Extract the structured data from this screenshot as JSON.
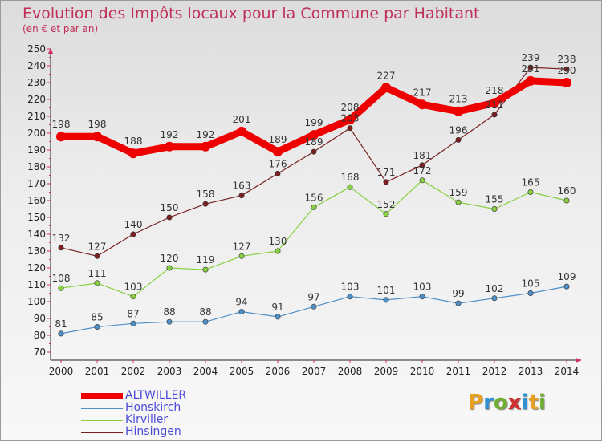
{
  "header": {
    "title": "Evolution des Impôts locaux pour la Commune par Habitant",
    "subtitle": "(en € et par an)"
  },
  "logo": {
    "letters": [
      "P",
      "r",
      "o",
      "x",
      "i",
      "t",
      "i"
    ],
    "colors": [
      "#e8a020",
      "#3090d0",
      "#70b030",
      "#d03030",
      "#3090d0",
      "#e8a020",
      "#70b030"
    ]
  },
  "chart_data": {
    "type": "line",
    "x": [
      "2000",
      "2001",
      "2002",
      "2003",
      "2004",
      "2005",
      "2006",
      "2007",
      "2008",
      "2009",
      "2010",
      "2011",
      "2012",
      "2013",
      "2014"
    ],
    "ylim": [
      70,
      250
    ],
    "yticks": [
      70,
      80,
      90,
      100,
      110,
      120,
      130,
      140,
      150,
      160,
      170,
      180,
      190,
      200,
      210,
      220,
      230,
      240,
      250
    ],
    "grid": false,
    "legend_position": "bottom-left",
    "series": [
      {
        "name": "ALTWILLER",
        "color": "#ee0000",
        "values": [
          198,
          198,
          188,
          192,
          192,
          201,
          189,
          199,
          208,
          227,
          217,
          213,
          218,
          231,
          230
        ],
        "labels": [
          "198",
          "198",
          "188",
          "192",
          "192",
          "201",
          "189",
          "199",
          "208",
          "227",
          "217",
          "213",
          "218",
          "231",
          "230"
        ]
      },
      {
        "name": "Honskirch",
        "color": "#4f8fc8",
        "values": [
          81,
          85,
          87,
          88,
          88,
          94,
          91,
          97,
          103,
          101,
          103,
          99,
          102,
          105,
          109
        ],
        "labels": [
          "81",
          "85",
          "87",
          "88",
          "88",
          "94",
          "91",
          "97",
          "103",
          "101",
          "103",
          "99",
          "102",
          "105",
          "109"
        ]
      },
      {
        "name": "Kirviller",
        "color": "#88d040",
        "values": [
          108,
          111,
          103,
          120,
          119,
          127,
          130,
          156,
          168,
          152,
          172,
          159,
          155,
          165,
          160
        ],
        "labels": [
          "108",
          "111",
          "103",
          "120",
          "119",
          "127",
          "130",
          "156",
          "168",
          "152",
          "172",
          "159",
          "155",
          "165",
          "160"
        ]
      },
      {
        "name": "Hinsingen",
        "color": "#7a2020",
        "values": [
          132,
          127,
          140,
          150,
          158,
          163,
          176,
          189,
          203,
          171,
          181,
          196,
          211,
          239,
          238
        ],
        "labels": [
          "132",
          "127",
          "140",
          "150",
          "158",
          "163",
          "176",
          "189",
          "203",
          "171",
          "181",
          "196",
          "211",
          "239",
          "238"
        ]
      }
    ]
  }
}
